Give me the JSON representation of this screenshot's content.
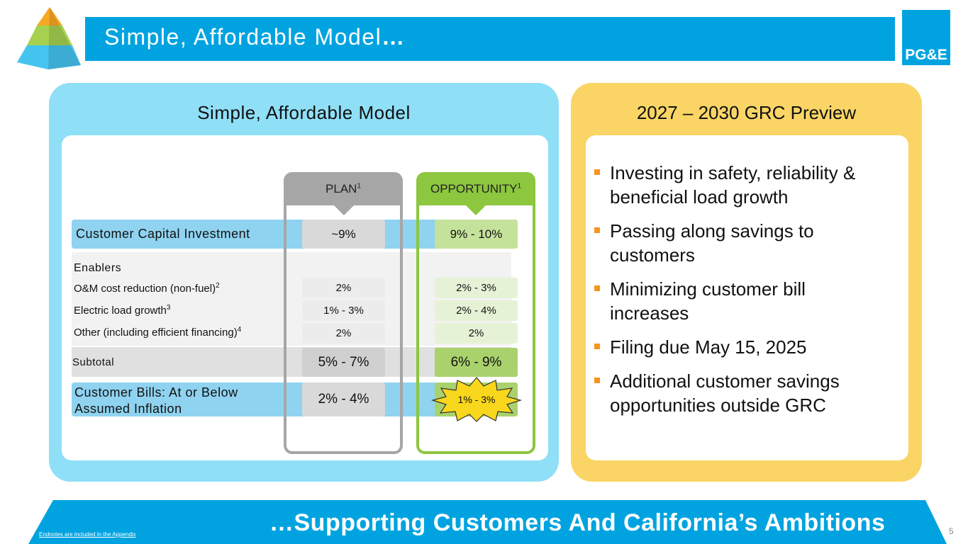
{
  "header": {
    "title": "Simple, Affordable Model",
    "title_suffix": "…",
    "logo": "PG&E"
  },
  "model": {
    "title": "Simple, Affordable Model",
    "columns": [
      {
        "label": "PLAN",
        "note": "1"
      },
      {
        "label": "OPPORTUNITY",
        "note": "1"
      }
    ],
    "capital": {
      "label": "Customer Capital Investment",
      "plan": "~9%",
      "opportunity": "9% - 10%"
    },
    "enablers": {
      "label": "Enablers",
      "items": [
        {
          "label": "O&M cost reduction (non-fuel)",
          "note": "2",
          "plan": "2%",
          "opportunity": "2% - 3%"
        },
        {
          "label": "Electric load growth",
          "note": "3",
          "plan": "1% - 3%",
          "opportunity": "2% - 4%"
        },
        {
          "label": "Other (including efficient financing)",
          "note": "4",
          "plan": "2%",
          "opportunity": "2%"
        }
      ]
    },
    "subtotal": {
      "label": "Subtotal",
      "plan": "5% - 7%",
      "opportunity": "6% - 9%"
    },
    "bills": {
      "label": "Customer Bills: At or Below Assumed Inflation",
      "plan": "2% - 4%",
      "opportunity": "1% - 3%"
    }
  },
  "preview": {
    "title": "2027 – 2030 GRC Preview",
    "bullets": [
      "Investing in safety, reliability & beneficial load growth",
      "Passing along savings to customers",
      "Minimizing customer bill increases",
      "Filing due May 15, 2025",
      "Additional customer savings opportunities outside GRC"
    ]
  },
  "footer": {
    "title": "…Supporting Customers And California’s Ambitions",
    "endnote": "Endnotes are included in the Appendix",
    "page": "5"
  }
}
